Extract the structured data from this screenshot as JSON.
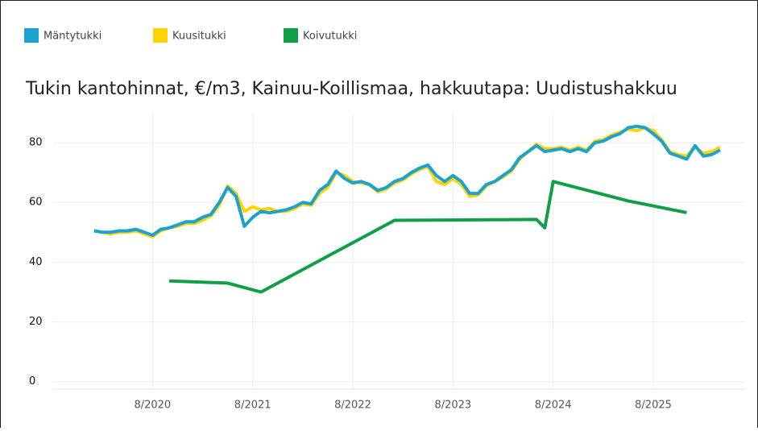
{
  "chart_data": {
    "type": "line",
    "title": "Tukin kantohinnat, €/m3,  Kainuu-Koillismaa, hakkuutapa: Uudistushakkuu",
    "x": [
      "2020-01",
      "2020-02",
      "2020-03",
      "2020-04",
      "2020-05",
      "2020-06",
      "2020-07",
      "2020-08",
      "2020-09",
      "2020-10",
      "2020-11",
      "2020-12",
      "2021-01",
      "2021-02",
      "2021-03",
      "2021-04",
      "2021-05",
      "2021-06",
      "2021-07",
      "2021-08",
      "2021-09",
      "2021-10",
      "2021-11",
      "2021-12",
      "2022-01",
      "2022-02",
      "2022-03",
      "2022-04",
      "2022-05",
      "2022-06",
      "2022-07",
      "2022-08",
      "2022-09",
      "2022-10",
      "2022-11",
      "2022-12",
      "2023-01",
      "2023-02",
      "2023-03",
      "2023-04",
      "2023-05",
      "2023-06",
      "2023-07",
      "2023-08",
      "2023-09",
      "2023-10",
      "2023-11",
      "2023-12",
      "2024-01",
      "2024-02",
      "2024-03",
      "2024-04",
      "2024-05",
      "2024-06",
      "2024-07",
      "2024-08",
      "2024-09",
      "2024-10",
      "2024-11",
      "2024-12",
      "2025-01",
      "2025-02",
      "2025-03",
      "2025-04",
      "2025-05",
      "2025-06",
      "2025-07",
      "2025-08",
      "2025-09",
      "2025-10",
      "2025-11",
      "2025-12",
      "2026-01",
      "2026-02",
      "2026-03",
      "2026-04"
    ],
    "series": [
      {
        "name": "Mäntytukki",
        "color": "#1aa3d1",
        "values": [
          50.5,
          50,
          50,
          50.5,
          50.5,
          51,
          50,
          49,
          51,
          51.5,
          52.5,
          53.5,
          53.5,
          55,
          56,
          60,
          65,
          62,
          52,
          55,
          57,
          56.5,
          57,
          57.5,
          58.5,
          60,
          59.5,
          64,
          66,
          70.5,
          68,
          66.5,
          67,
          66,
          64,
          65,
          67,
          68,
          70,
          71.5,
          72.5,
          69,
          67,
          69,
          67,
          63,
          63,
          66,
          67,
          69,
          71,
          75,
          77,
          79,
          77,
          77.5,
          78,
          77,
          78,
          77,
          80,
          80.5,
          82,
          83,
          85,
          85.5,
          85,
          83,
          80.5,
          76.5,
          75.5,
          74.5,
          79,
          75.5,
          76,
          77.5
        ]
      },
      {
        "name": "Kuusitukki",
        "color": "#ffd200",
        "values": [
          50.5,
          50,
          49.5,
          50,
          50,
          50.5,
          49.5,
          48.5,
          50.5,
          51.5,
          52,
          53,
          53,
          54,
          55.5,
          59,
          65.5,
          63,
          57,
          58.5,
          57.5,
          58,
          57,
          57,
          58,
          59.5,
          59,
          63,
          65,
          70,
          69,
          67,
          66.5,
          66,
          63.5,
          64.5,
          66.5,
          67.5,
          69.5,
          71,
          72,
          67,
          66,
          68,
          66,
          62,
          62.5,
          65.5,
          67,
          68.5,
          70.5,
          74.5,
          77,
          79.5,
          78,
          78,
          78.5,
          77.5,
          78.5,
          77.5,
          80.5,
          81,
          82.5,
          83.5,
          84.5,
          84,
          85,
          84,
          81,
          77,
          76,
          75.5,
          78.5,
          76.5,
          77,
          78.5
        ]
      },
      {
        "name": "Koivutukki",
        "color": "#0e9f47",
        "x": [
          "2020-10",
          "2021-05",
          "2021-09",
          "2023-01",
          "2024-06",
          "2024-07",
          "2024-08",
          "2025-05",
          "2025-12"
        ],
        "values": [
          33.7,
          33,
          30,
          54,
          54.3,
          51.5,
          67,
          60.5,
          56.6
        ]
      }
    ],
    "xlim": [
      "2019-08",
      "2026-07"
    ],
    "xticks": [
      {
        "value": "2020-08",
        "label": "8/2020"
      },
      {
        "value": "2021-08",
        "label": "8/2021"
      },
      {
        "value": "2022-08",
        "label": "8/2022"
      },
      {
        "value": "2023-08",
        "label": "8/2023"
      },
      {
        "value": "2024-08",
        "label": "8/2024"
      },
      {
        "value": "2025-08",
        "label": "8/2025"
      }
    ],
    "ylim": [
      -2.5,
      90
    ],
    "yticks": [
      0,
      20,
      40,
      60,
      80
    ],
    "grid": true
  }
}
